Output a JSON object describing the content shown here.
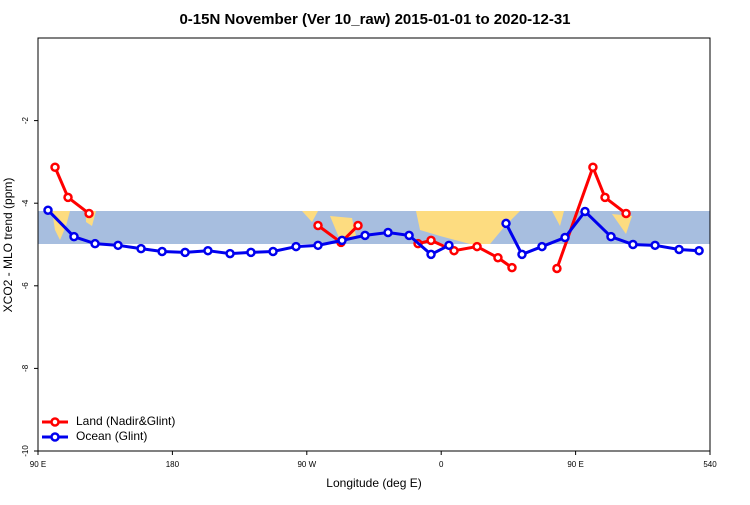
{
  "chart_data": {
    "type": "line",
    "title": "0-15N November (Ver 10_raw)   2015-01-01 to 2020-12-31",
    "x_label": "Longitude (deg E)",
    "y_label": "XCO2 - MLO trend (ppm)",
    "xlim": [
      90,
      540
    ],
    "xticks": [
      {
        "value": 90,
        "label": "90 E"
      },
      180,
      {
        "value": 270,
        "label": "90 W"
      },
      {
        "value": 360,
        "label": "0"
      },
      {
        "value": 450,
        "label": "90 E"
      },
      540
    ],
    "ylim": [
      -10,
      0
    ],
    "yticks": [
      -10,
      -8,
      -6,
      -4,
      -2
    ],
    "legend": "bottom-left",
    "series": [
      {
        "name": "Land (Nadir&Glint)",
        "color": "#ff0000",
        "x": [
          101.4,
          110.1,
          124.2,
          null,
          277.5,
          292.9,
          304.3,
          null,
          344.5,
          353.2,
          368.6,
          384.0,
          398.0,
          407.4,
          null,
          437.5,
          461.6,
          469.7,
          483.8
        ],
        "values": [
          -3.13,
          -3.86,
          -4.25,
          null,
          -4.54,
          -4.95,
          -4.54,
          null,
          -4.98,
          -4.9,
          -5.15,
          -5.05,
          -5.32,
          -5.56,
          null,
          -5.58,
          -3.13,
          -3.86,
          -4.25
        ]
      },
      {
        "name": "Ocean (Glint)",
        "color": "#0000ee",
        "x": [
          96.7,
          114.1,
          128.2,
          143.6,
          159.0,
          173.1,
          188.5,
          203.8,
          218.6,
          232.6,
          247.4,
          262.8,
          277.5,
          293.6,
          309.0,
          324.4,
          338.5,
          353.2,
          365.2,
          null,
          403.4,
          414.1,
          427.5,
          442.9,
          456.3,
          473.7,
          488.4,
          503.2,
          519.3,
          532.7
        ],
        "values": [
          -4.17,
          -4.81,
          -4.98,
          -5.02,
          -5.1,
          -5.17,
          -5.19,
          -5.15,
          -5.22,
          -5.19,
          -5.17,
          -5.05,
          -5.02,
          -4.9,
          -4.78,
          -4.71,
          -4.78,
          -5.24,
          -5.02,
          null,
          -4.49,
          -5.24,
          -5.05,
          -4.83,
          -4.2,
          -4.81,
          -5.0,
          -5.02,
          -5.12,
          -5.15
        ]
      }
    ]
  }
}
